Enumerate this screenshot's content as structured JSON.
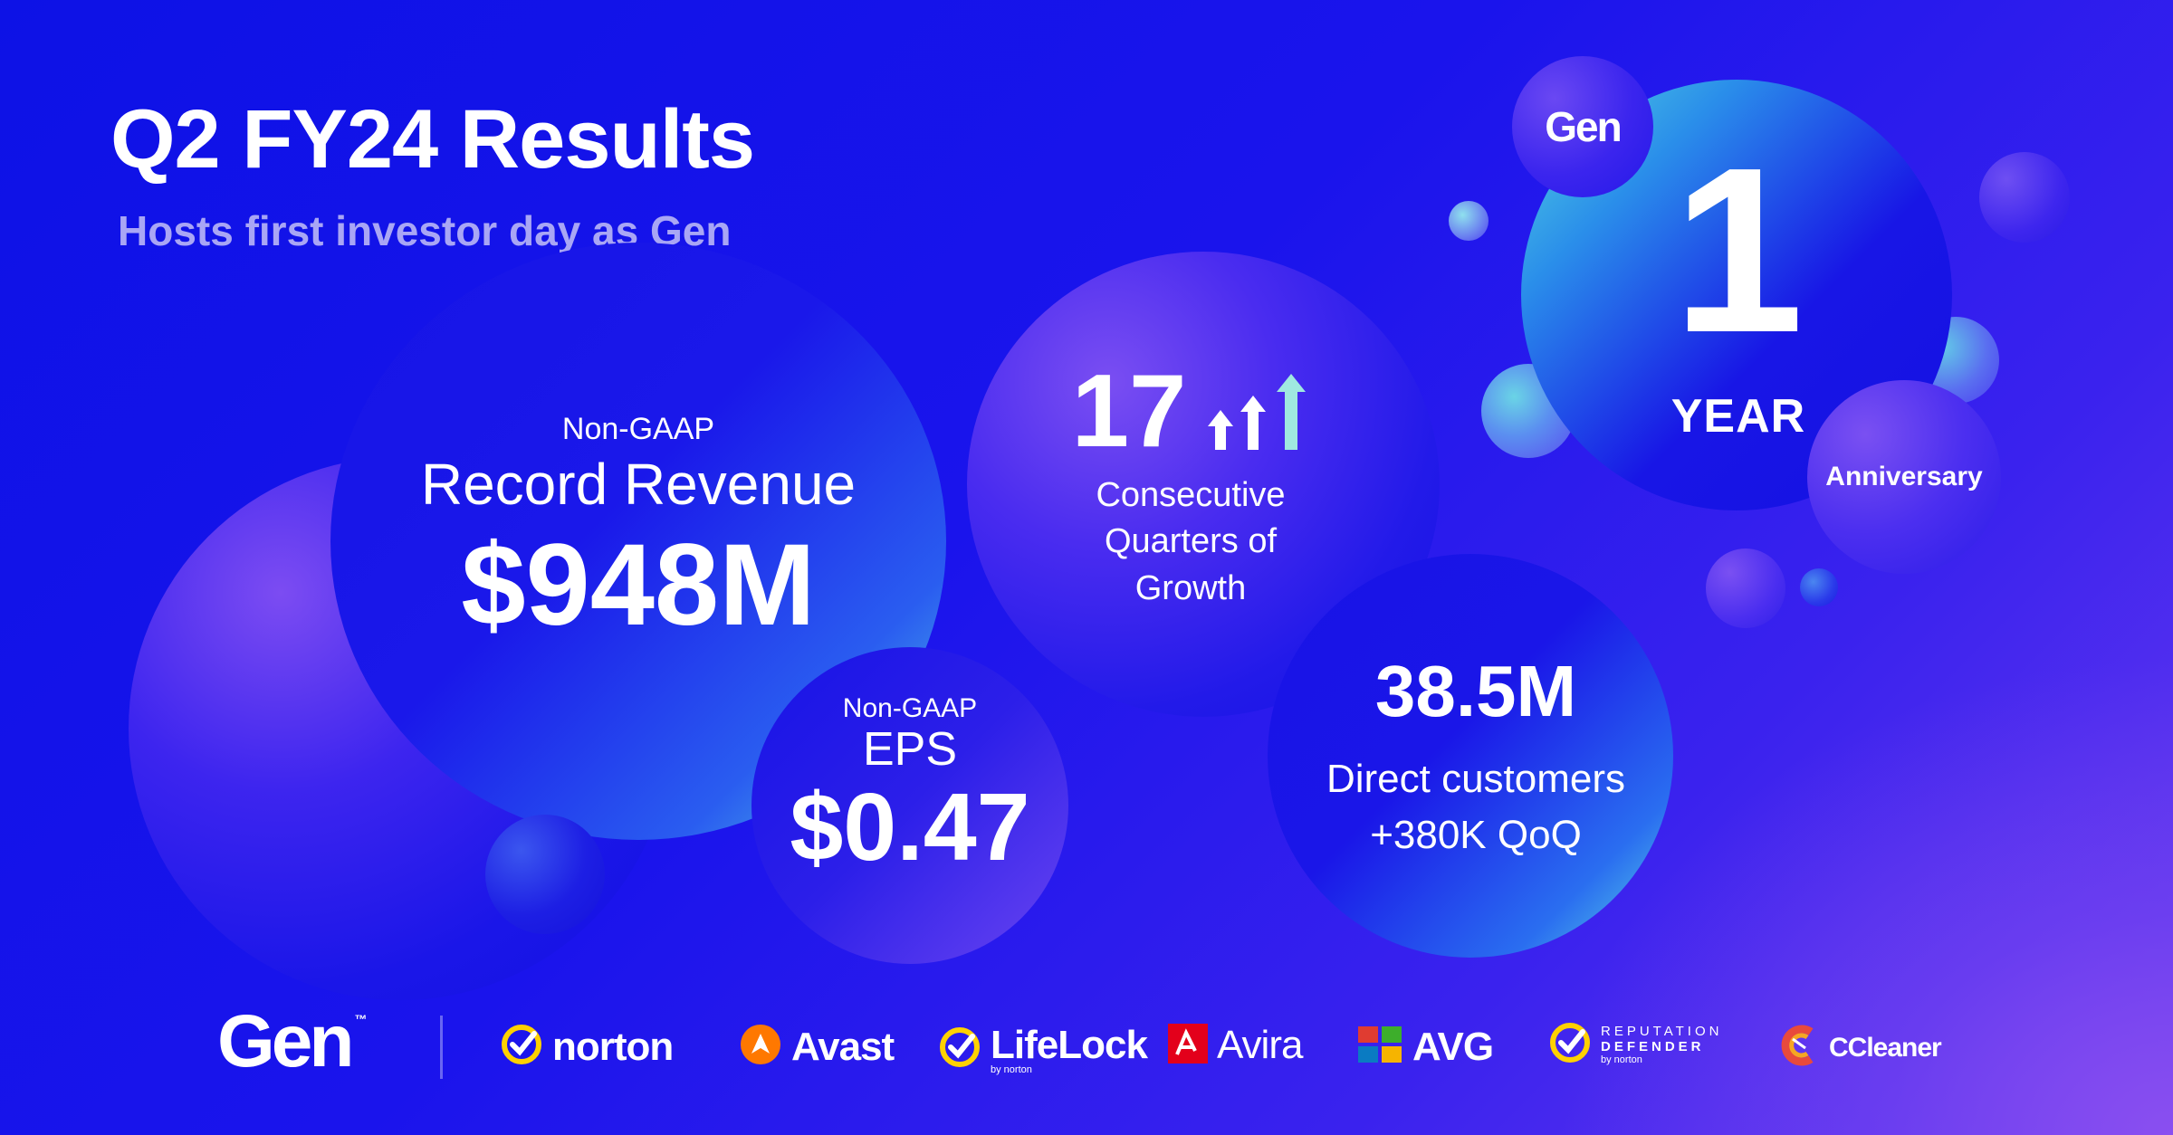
{
  "header": {
    "title": "Q2 FY24 Results",
    "subtitle": "Hosts first investor day as Gen"
  },
  "revenue": {
    "label": "Non-GAAP",
    "title": "Record Revenue",
    "value": "$948M"
  },
  "eps": {
    "label": "Non-GAAP",
    "title": "EPS",
    "value": "$0.47"
  },
  "growth": {
    "value": "17",
    "caption_lines": [
      "Consecutive",
      "Quarters of",
      "Growth"
    ],
    "arrows_icon": "growth-arrows-icon"
  },
  "customers": {
    "value": "38.5M",
    "line1": "Direct customers",
    "line2": "+380K QoQ"
  },
  "anniversary": {
    "badge": "Gen",
    "number": "1",
    "unit": "YEAR",
    "label": "Anniversary"
  },
  "footer": {
    "gen_logo": "Gen",
    "brands": {
      "norton": "norton",
      "avast": "Avast",
      "lifelock": "LifeLock",
      "lifelock_sub": "by norton",
      "avira": "Avira",
      "avg": "AVG",
      "repdef_line1": "REPUTATION",
      "repdef_line2": "DEFENDER",
      "repdef_sub": "by norton",
      "ccleaner": "CCleaner"
    }
  },
  "colors": {
    "background_start": "#0d12e6",
    "background_end": "#6b3cf0",
    "subtitle": "#a9a6f5",
    "teal_accent": "#56d8e0",
    "norton_yellow": "#ffd100",
    "avast_orange": "#ff7800",
    "avira_red": "#e3001b"
  }
}
